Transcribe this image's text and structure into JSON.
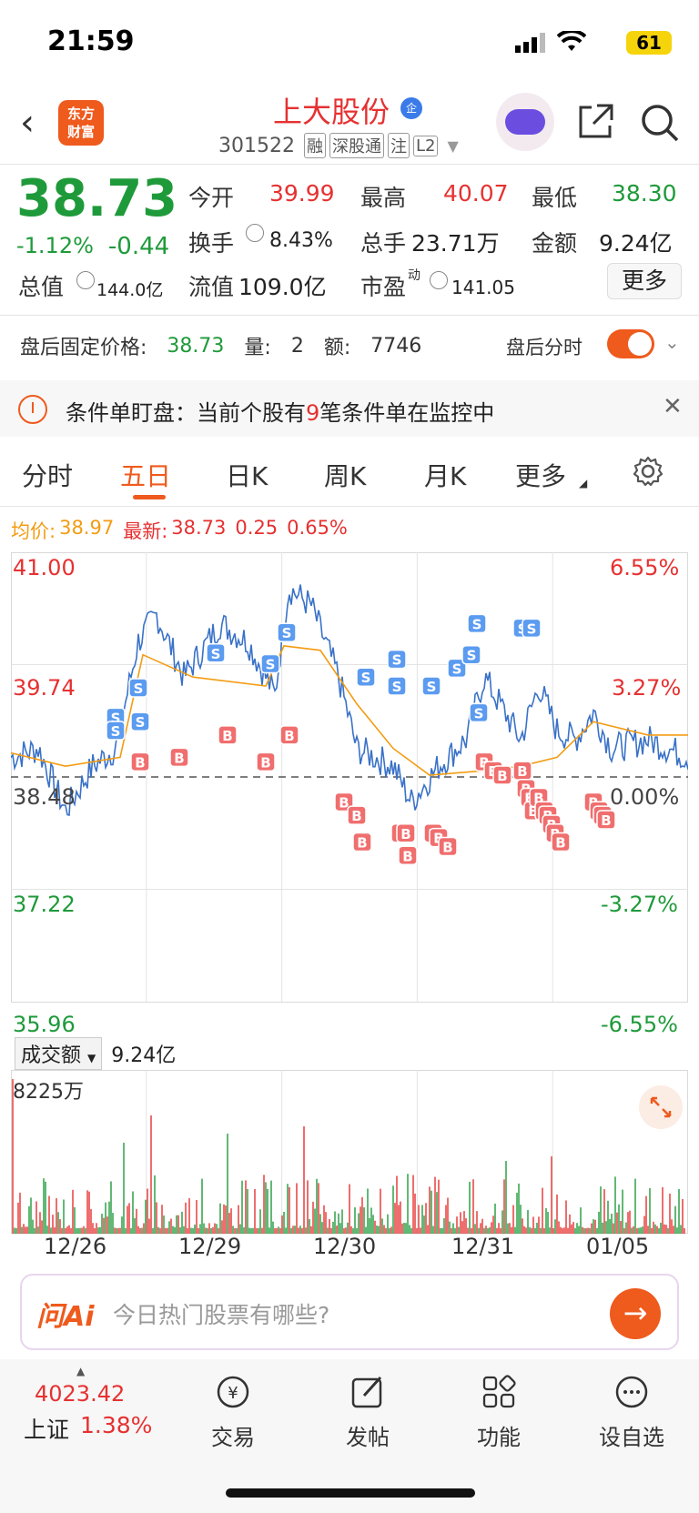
{
  "status_bar": {
    "time": "21:59",
    "battery": "61"
  },
  "header": {
    "logo_text": "东方财富",
    "stock_name": "上大股份",
    "badge": "企",
    "code": "301522",
    "tags": [
      "融",
      "深股通",
      "注",
      "L2"
    ]
  },
  "quote": {
    "price": "38.73",
    "change_pct": "-1.12%",
    "change": "-0.44",
    "rows": [
      [
        {
          "label": "今开",
          "value": "39.99",
          "color": "#e63131"
        },
        {
          "label": "最高",
          "value": "40.07",
          "color": "#e63131"
        },
        {
          "label": "最低",
          "value": "38.30",
          "color": "#1f9a3a"
        }
      ],
      [
        {
          "label": "换手",
          "value": "8.43%",
          "color": "#222222"
        },
        {
          "label": "总手",
          "value": "23.71万",
          "color": "#222222"
        },
        {
          "label": "金额",
          "value": "9.24亿",
          "color": "#222222"
        }
      ],
      [
        {
          "label": "总值",
          "value": "144.0亿",
          "color": "#222222"
        },
        {
          "label": "流值",
          "value": "109.0亿",
          "color": "#222222"
        },
        {
          "label": "市盈",
          "value": "141.05",
          "color": "#222222"
        }
      ]
    ],
    "pe_superscript": "动",
    "more_label": "更多"
  },
  "after_hours": {
    "label": "盘后固定价格:",
    "price": "38.73",
    "vol_label": "量:",
    "vol": "2",
    "amt_label": "额:",
    "amt": "7746",
    "timeshare_label": "盘后分时"
  },
  "alert": {
    "prefix": "条件单盯盘：当前个股有",
    "count": "9",
    "suffix": "笔条件单在监控中"
  },
  "tabs": [
    "分时",
    "五日",
    "日K",
    "周K",
    "月K",
    "更多"
  ],
  "avg_bar": {
    "avg_label": "均价:",
    "avg_value": "38.97",
    "latest_label": "最新:",
    "latest_value": "38.73",
    "change": "0.25",
    "change_pct": "0.65%"
  },
  "chart_data": {
    "type": "line",
    "y_labels_left": [
      "41.00",
      "39.74",
      "38.48",
      "37.22",
      "35.96"
    ],
    "y_labels_right": [
      "6.55%",
      "3.27%",
      "0.00%",
      "-3.27%",
      "-6.55%"
    ],
    "ylim": [
      35.96,
      41.0
    ],
    "prev_close": 38.48,
    "x_dates": [
      "12/26",
      "12/29",
      "12/30",
      "12/31",
      "01/05"
    ],
    "price_series_color": "#3a72c8",
    "avg_series_color": "#f39c12",
    "buy_marker": "B",
    "sell_marker": "S",
    "volume": {
      "selector": "成交额",
      "total": "9.24亿",
      "max_label": "8225万"
    }
  },
  "ai_bar": {
    "logo": "问Ai",
    "placeholder": "今日热门股票有哪些?"
  },
  "bottom_bar": {
    "index_value": "4023.42",
    "index_name": "上证",
    "index_change": "1.38%",
    "nav": [
      "交易",
      "发帖",
      "功能",
      "设自选"
    ]
  }
}
